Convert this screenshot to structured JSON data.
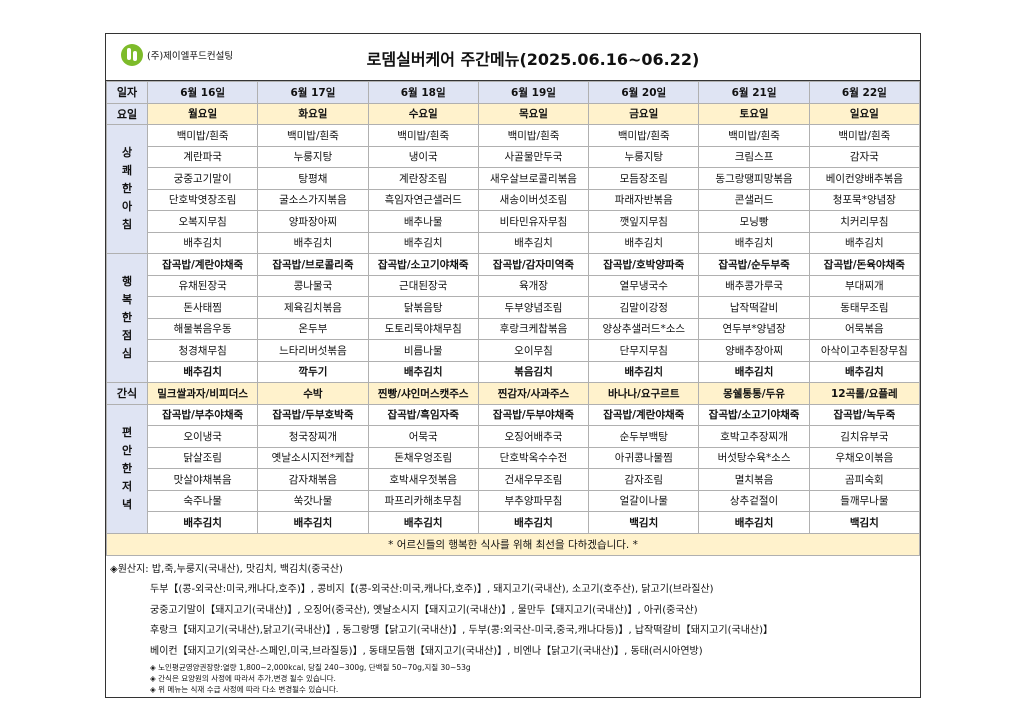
{
  "company": "(주)제이엘푸드컨설팅",
  "title": "로뎀실버케어 주간메뉴(2025.06.16~06.22)",
  "labels": {
    "date": "일자",
    "weekday": "요일",
    "breakfast": [
      "상",
      "쾌",
      "한",
      "아",
      "침"
    ],
    "lunch": [
      "행",
      "복",
      "한",
      "점",
      "심"
    ],
    "snack": "간식",
    "dinner": [
      "편",
      "안",
      "한",
      "저",
      "녁"
    ]
  },
  "dates": [
    "6월 16일",
    "6월 17일",
    "6월 18일",
    "6월 19일",
    "6월 20일",
    "6월 21일",
    "6월 22일"
  ],
  "weekdays": [
    "월요일",
    "화요일",
    "수요일",
    "목요일",
    "금요일",
    "토요일",
    "일요일"
  ],
  "breakfast": [
    [
      "백미밥/흰죽",
      "백미밥/흰죽",
      "백미밥/흰죽",
      "백미밥/흰죽",
      "백미밥/흰죽",
      "백미밥/흰죽",
      "백미밥/흰죽"
    ],
    [
      "계란파국",
      "누룽지탕",
      "냉이국",
      "사골물만두국",
      "누룽지탕",
      "크림스프",
      "감자국"
    ],
    [
      "궁중고기말이",
      "탕평채",
      "계란장조림",
      "새우살브로콜리볶음",
      "모듬장조림",
      "동그랑땡피망볶음",
      "베이컨양배추볶음"
    ],
    [
      "단호박엿장조림",
      "굴소스가지볶음",
      "흑임자연근샐러드",
      "새송이버섯조림",
      "파래자반볶음",
      "콘샐러드",
      "청포묵*양념장"
    ],
    [
      "오복지무침",
      "양파장아찌",
      "배추나물",
      "비타민유자무침",
      "깻잎지무침",
      "모닝빵",
      "치커리무침"
    ],
    [
      "배추김치",
      "배추김치",
      "배추김치",
      "배추김치",
      "배추김치",
      "배추김치",
      "배추김치"
    ]
  ],
  "lunch": [
    [
      "잡곡밥/계란야채죽",
      "잡곡밥/브로콜리죽",
      "잡곡밥/소고기야채죽",
      "잡곡밥/감자미역죽",
      "잡곡밥/호박양파죽",
      "잡곡밥/순두부죽",
      "잡곡밥/돈육야채죽"
    ],
    [
      "유채된장국",
      "콩나물국",
      "근대된장국",
      "육개장",
      "열무냉국수",
      "배추콩가루국",
      "부대찌개"
    ],
    [
      "돈사태찜",
      "제육김치볶음",
      "닭볶음탕",
      "두부양념조림",
      "김말이강정",
      "납작떡갈비",
      "동태무조림"
    ],
    [
      "해물볶음우동",
      "온두부",
      "도토리묵야채무침",
      "후랑크케찹볶음",
      "양상추샐러드*소스",
      "연두부*양념장",
      "어묵볶음"
    ],
    [
      "청경채무침",
      "느타리버섯볶음",
      "비름나물",
      "오이무침",
      "단무지무침",
      "양배추장아찌",
      "아삭이고추된장무침"
    ],
    [
      "배추김치",
      "깍두기",
      "배추김치",
      "볶음김치",
      "배추김치",
      "배추김치",
      "배추김치"
    ]
  ],
  "snack": [
    "밀크쌀과자/비피더스",
    "수박",
    "찐빵/샤인머스캣주스",
    "찐감자/사과주스",
    "바나나/요구르트",
    "몽쉘통통/두유",
    "12곡롤/요플레"
  ],
  "dinner": [
    [
      "잡곡밥/부추야채죽",
      "잡곡밥/두부호박죽",
      "잡곡밥/흑임자죽",
      "잡곡밥/두부야채죽",
      "잡곡밥/계란야채죽",
      "잡곡밥/소고기야채죽",
      "잡곡밥/녹두죽"
    ],
    [
      "오이냉국",
      "청국장찌개",
      "어묵국",
      "오징어배추국",
      "순두부백탕",
      "호박고추장찌개",
      "김치유부국"
    ],
    [
      "닭살조림",
      "옛날소시지전*케찹",
      "돈채우엉조림",
      "단호박옥수수전",
      "아귀콩나물찜",
      "버섯탕수육*소스",
      "우채오이볶음"
    ],
    [
      "맛살야채볶음",
      "감자채볶음",
      "호박새우젓볶음",
      "건새우무조림",
      "감자조림",
      "멸치볶음",
      "곰피숙회"
    ],
    [
      "숙주나물",
      "쑥갓나물",
      "파프리카해초무침",
      "부추양파무침",
      "얼갈이나물",
      "상추겉절이",
      "들깨무나물"
    ],
    [
      "배추김치",
      "배추김치",
      "배추김치",
      "배추김치",
      "백김치",
      "배추김치",
      "백김치"
    ]
  ],
  "notice": "* 어르신들의 행복한 식사를 위해 최선을 다하겠습니다. *",
  "origin": [
    "◈원산지: 밥,죽,누룽지(국내산), 맛김치, 백김치(중국산)",
    "두부【(콩-외국산:미국,캐나다,호주)】, 콩비지【(콩-외국산:미국,캐나다,호주)】, 돼지고기(국내산), 소고기(호주산), 닭고기(브라질산)",
    "궁중고기말이【돼지고기(국내산)】, 오징어(중국산), 옛날소시지【돼지고기(국내산)】, 물만두【돼지고기(국내산)】, 아귀(중국산)",
    "후랑크【돼지고기(국내산),닭고기(국내산)】, 동그랑땡【닭고기(국내산)】, 두부(콩:외국산-미국,중국,캐나다등)】, 납작떡갈비【돼지고기(국내산)】",
    "베이컨【돼지고기(외국산-스페인,미국,브라질등)】, 동태모듬햄【돼지고기(국내산)】, 비엔나【닭고기(국내산)】, 동태(러시아연방)"
  ],
  "notes": [
    "◈ 노인평균영양권장량:열량 1,800~2,000kcal, 당질 240~300g, 단백질 50~70g,지질 30~53g",
    "◈ 간식은 요양원의 사정에 따라서 추가,변경 될수 있습니다.",
    "◈ 위 메뉴는 식재 수급 사정에 따라 다소 변경될수 있습니다."
  ]
}
